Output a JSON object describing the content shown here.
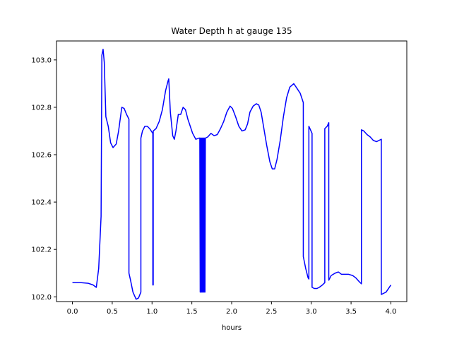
{
  "chart_data": {
    "type": "line",
    "title": "Water Depth h at gauge 135",
    "xlabel": "hours",
    "ylabel": "",
    "xlim": [
      -0.2,
      4.2
    ],
    "ylim": [
      101.98,
      103.08
    ],
    "x_ticks": [
      0.0,
      0.5,
      1.0,
      1.5,
      2.0,
      2.5,
      3.0,
      3.5,
      4.0
    ],
    "x_tick_labels": [
      "0.0",
      "0.5",
      "1.0",
      "1.5",
      "2.0",
      "2.5",
      "3.0",
      "3.5",
      "4.0"
    ],
    "y_ticks": [
      102.0,
      102.2,
      102.4,
      102.6,
      102.8,
      103.0
    ],
    "y_tick_labels": [
      "102.0",
      "102.2",
      "102.4",
      "102.6",
      "102.8",
      "103.0"
    ],
    "grid": false,
    "series": [
      {
        "color": "#0000ff",
        "points": [
          [
            0.0,
            102.06
          ],
          [
            0.1,
            102.06
          ],
          [
            0.2,
            102.057
          ],
          [
            0.26,
            102.05
          ],
          [
            0.3,
            102.04
          ],
          [
            0.33,
            102.12
          ],
          [
            0.36,
            102.34
          ],
          [
            0.37,
            103.02
          ],
          [
            0.385,
            103.045
          ],
          [
            0.4,
            102.99
          ],
          [
            0.42,
            102.76
          ],
          [
            0.45,
            102.72
          ],
          [
            0.48,
            102.65
          ],
          [
            0.51,
            102.63
          ],
          [
            0.55,
            102.645
          ],
          [
            0.58,
            102.7
          ],
          [
            0.62,
            102.8
          ],
          [
            0.65,
            102.795
          ],
          [
            0.68,
            102.77
          ],
          [
            0.71,
            102.75
          ],
          [
            0.71,
            102.1
          ],
          [
            0.73,
            102.07
          ],
          [
            0.76,
            102.02
          ],
          [
            0.8,
            101.99
          ],
          [
            0.83,
            101.995
          ],
          [
            0.86,
            102.02
          ],
          [
            0.86,
            102.67
          ],
          [
            0.88,
            102.7
          ],
          [
            0.91,
            102.72
          ],
          [
            0.94,
            102.72
          ],
          [
            0.97,
            102.71
          ],
          [
            1.0,
            102.695
          ],
          [
            1.01,
            102.69
          ],
          [
            1.01,
            102.05
          ],
          [
            1.015,
            102.05
          ],
          [
            1.015,
            102.7
          ],
          [
            1.05,
            102.71
          ],
          [
            1.09,
            102.74
          ],
          [
            1.13,
            102.79
          ],
          [
            1.17,
            102.87
          ],
          [
            1.2,
            102.91
          ],
          [
            1.21,
            102.92
          ],
          [
            1.23,
            102.78
          ],
          [
            1.26,
            102.68
          ],
          [
            1.28,
            102.665
          ],
          [
            1.3,
            102.7
          ],
          [
            1.33,
            102.77
          ],
          [
            1.36,
            102.77
          ],
          [
            1.39,
            102.8
          ],
          [
            1.42,
            102.79
          ],
          [
            1.45,
            102.75
          ],
          [
            1.48,
            102.72
          ],
          [
            1.51,
            102.69
          ],
          [
            1.55,
            102.665
          ],
          [
            1.59,
            102.67
          ],
          [
            1.6,
            102.67
          ],
          [
            1.605,
            102.02
          ],
          [
            1.61,
            102.67
          ],
          [
            1.615,
            102.02
          ],
          [
            1.62,
            102.67
          ],
          [
            1.625,
            102.02
          ],
          [
            1.63,
            102.67
          ],
          [
            1.635,
            102.02
          ],
          [
            1.64,
            102.67
          ],
          [
            1.645,
            102.02
          ],
          [
            1.65,
            102.67
          ],
          [
            1.655,
            102.02
          ],
          [
            1.66,
            102.67
          ],
          [
            1.665,
            102.02
          ],
          [
            1.67,
            102.67
          ],
          [
            1.7,
            102.675
          ],
          [
            1.74,
            102.69
          ],
          [
            1.78,
            102.68
          ],
          [
            1.82,
            102.685
          ],
          [
            1.86,
            102.71
          ],
          [
            1.9,
            102.74
          ],
          [
            1.94,
            102.78
          ],
          [
            1.98,
            102.805
          ],
          [
            2.01,
            102.795
          ],
          [
            2.05,
            102.76
          ],
          [
            2.09,
            102.72
          ],
          [
            2.13,
            102.7
          ],
          [
            2.17,
            102.705
          ],
          [
            2.2,
            102.73
          ],
          [
            2.23,
            102.78
          ],
          [
            2.27,
            102.805
          ],
          [
            2.31,
            102.815
          ],
          [
            2.34,
            102.81
          ],
          [
            2.37,
            102.78
          ],
          [
            2.4,
            102.72
          ],
          [
            2.44,
            102.64
          ],
          [
            2.48,
            102.57
          ],
          [
            2.51,
            102.54
          ],
          [
            2.54,
            102.54
          ],
          [
            2.57,
            102.58
          ],
          [
            2.61,
            102.66
          ],
          [
            2.65,
            102.76
          ],
          [
            2.69,
            102.84
          ],
          [
            2.73,
            102.885
          ],
          [
            2.78,
            102.9
          ],
          [
            2.82,
            102.88
          ],
          [
            2.86,
            102.86
          ],
          [
            2.9,
            102.82
          ],
          [
            2.9,
            102.17
          ],
          [
            2.93,
            102.12
          ],
          [
            2.96,
            102.08
          ],
          [
            2.97,
            102.075
          ],
          [
            2.97,
            102.72
          ],
          [
            2.99,
            102.705
          ],
          [
            3.01,
            102.69
          ],
          [
            3.01,
            102.04
          ],
          [
            3.04,
            102.035
          ],
          [
            3.07,
            102.035
          ],
          [
            3.1,
            102.04
          ],
          [
            3.14,
            102.05
          ],
          [
            3.17,
            102.06
          ],
          [
            3.17,
            102.71
          ],
          [
            3.2,
            102.72
          ],
          [
            3.22,
            102.735
          ],
          [
            3.22,
            102.07
          ],
          [
            3.25,
            102.09
          ],
          [
            3.3,
            102.1
          ],
          [
            3.34,
            102.105
          ],
          [
            3.38,
            102.095
          ],
          [
            3.42,
            102.095
          ],
          [
            3.47,
            102.095
          ],
          [
            3.52,
            102.09
          ],
          [
            3.56,
            102.08
          ],
          [
            3.6,
            102.065
          ],
          [
            3.63,
            102.055
          ],
          [
            3.63,
            102.705
          ],
          [
            3.66,
            102.7
          ],
          [
            3.7,
            102.685
          ],
          [
            3.74,
            102.675
          ],
          [
            3.78,
            102.66
          ],
          [
            3.82,
            102.655
          ],
          [
            3.85,
            102.66
          ],
          [
            3.88,
            102.665
          ],
          [
            3.88,
            102.01
          ],
          [
            3.91,
            102.015
          ],
          [
            3.94,
            102.02
          ],
          [
            3.97,
            102.035
          ],
          [
            4.0,
            102.05
          ]
        ]
      }
    ]
  }
}
